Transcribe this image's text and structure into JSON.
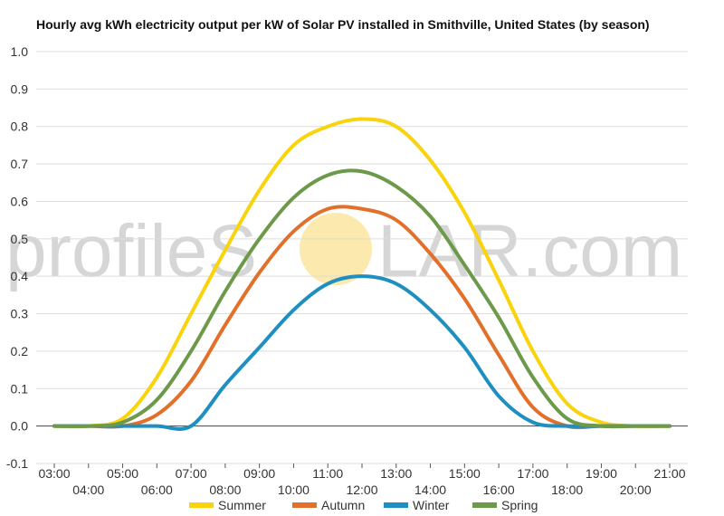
{
  "chart_data": {
    "type": "line",
    "title": "Hourly avg kWh electricity output per kW of Solar PV installed in Smithville, United States (by season)",
    "xlabel": "",
    "ylabel": "",
    "ylim": [
      -0.1,
      1.0
    ],
    "yticks": [
      "1.0",
      "0.9",
      "0.8",
      "0.7",
      "0.6",
      "0.5",
      "0.4",
      "0.3",
      "0.2",
      "0.1",
      "0.0",
      "-0.1"
    ],
    "x": [
      "03:00",
      "04:00",
      "05:00",
      "06:00",
      "07:00",
      "08:00",
      "09:00",
      "10:00",
      "11:00",
      "12:00",
      "13:00",
      "14:00",
      "15:00",
      "16:00",
      "17:00",
      "18:00",
      "19:00",
      "20:00",
      "21:00"
    ],
    "grid": true,
    "legend": "bottom",
    "series": [
      {
        "name": "Summer",
        "color": "#f9d30b",
        "values": [
          0.0,
          0.0,
          0.02,
          0.13,
          0.3,
          0.47,
          0.63,
          0.75,
          0.8,
          0.82,
          0.8,
          0.71,
          0.57,
          0.39,
          0.2,
          0.06,
          0.01,
          0.0,
          0.0
        ]
      },
      {
        "name": "Autumn",
        "color": "#e2702a",
        "values": [
          0.0,
          0.0,
          0.0,
          0.03,
          0.12,
          0.27,
          0.41,
          0.52,
          0.58,
          0.58,
          0.55,
          0.46,
          0.34,
          0.19,
          0.05,
          0.0,
          0.0,
          0.0,
          0.0
        ]
      },
      {
        "name": "Winter",
        "color": "#1e8fc0",
        "values": [
          0.0,
          0.0,
          0.0,
          0.0,
          0.0,
          0.11,
          0.21,
          0.31,
          0.38,
          0.4,
          0.38,
          0.31,
          0.21,
          0.08,
          0.01,
          0.0,
          0.0,
          0.0,
          0.0
        ]
      },
      {
        "name": "Spring",
        "color": "#6c9a4a",
        "values": [
          0.0,
          0.0,
          0.01,
          0.07,
          0.2,
          0.36,
          0.5,
          0.61,
          0.67,
          0.68,
          0.64,
          0.56,
          0.43,
          0.29,
          0.13,
          0.02,
          0.0,
          0.0,
          0.0
        ]
      }
    ]
  },
  "watermark": {
    "left": "profileS",
    "right": "LAR.com",
    "sun_color": "#fbe9ad"
  }
}
